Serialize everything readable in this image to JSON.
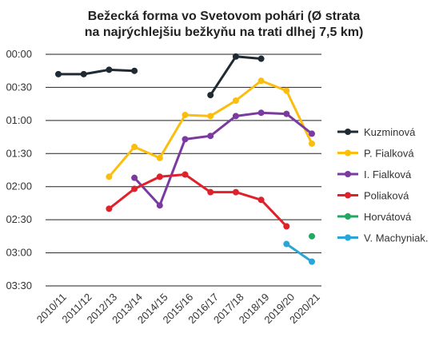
{
  "chart_data": {
    "type": "line",
    "title_lines": [
      "Bežecká forma vo Svetovom pohári (Ø strata",
      "na najrýchlejšiu bežkyňu na trati dlhej 7,5 km)"
    ],
    "categories": [
      "2010/11",
      "2011/12",
      "2012/13",
      "2013/14",
      "2014/15",
      "2015/16",
      "2016/17",
      "2017/18",
      "2018/19",
      "2019/20",
      "2020/21"
    ],
    "y_axis": {
      "unit": "seconds",
      "inverted": true,
      "range": [
        0,
        210
      ],
      "ticks": [
        0,
        30,
        60,
        90,
        120,
        150,
        180,
        210
      ],
      "tick_labels": [
        "00:00",
        "00:30",
        "01:00",
        "01:30",
        "02:00",
        "02:30",
        "03:00",
        "03:30"
      ]
    },
    "grid": true,
    "legend_position": "right",
    "series": [
      {
        "name": "Kuzminová",
        "color": "#1f2a33",
        "values": [
          18,
          18,
          14,
          15,
          null,
          null,
          37,
          2,
          4,
          null,
          null
        ]
      },
      {
        "name": "P. Fialková",
        "color": "#fbbe0e",
        "values": [
          null,
          null,
          111,
          84,
          94,
          55,
          56,
          42,
          24,
          33,
          81
        ]
      },
      {
        "name": "I. Fialková",
        "color": "#7a3aa0",
        "values": [
          null,
          null,
          null,
          112,
          137,
          77,
          74,
          56,
          53,
          54,
          72
        ]
      },
      {
        "name": "Poliaková",
        "color": "#e0202a",
        "values": [
          null,
          null,
          140,
          122,
          111,
          109,
          125,
          125,
          132,
          156,
          null
        ]
      },
      {
        "name": "Horvátová",
        "color": "#22a864",
        "values": [
          null,
          null,
          null,
          null,
          null,
          null,
          null,
          null,
          null,
          null,
          165
        ]
      },
      {
        "name": "V. Machyniak.",
        "color": "#2aa5d8",
        "values": [
          null,
          null,
          null,
          null,
          null,
          null,
          null,
          null,
          null,
          172,
          188
        ]
      }
    ]
  }
}
